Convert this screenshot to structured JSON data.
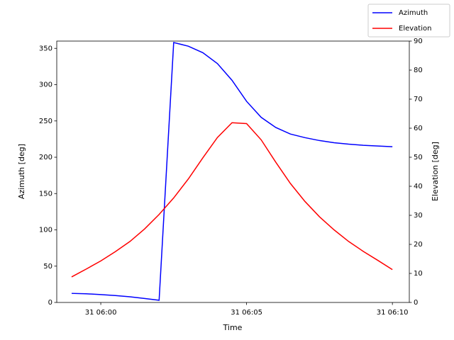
{
  "chart_data": {
    "type": "line",
    "x_label": "Time",
    "y_label": "Azimuth [deg]",
    "y2_label": "Elevation [deg]",
    "x": [
      -1,
      -0.5,
      0,
      0.5,
      1,
      1.5,
      2,
      2.5,
      3,
      3.5,
      4,
      4.5,
      5,
      5.5,
      6,
      6.5,
      7,
      7.5,
      8,
      8.5,
      9,
      9.5,
      10
    ],
    "series": [
      {
        "name": "Azimuth",
        "color": "#0000ff",
        "axis": "y",
        "values": [
          12.5,
          12,
          10.8,
          9.5,
          7.8,
          5.5,
          3,
          358,
          353,
          344,
          329,
          306,
          277,
          255,
          241,
          232,
          227,
          223,
          220,
          218,
          216.5,
          215.5,
          214.5
        ]
      },
      {
        "name": "Elevation",
        "color": "#ff0000",
        "axis": "y2",
        "values": [
          8.8,
          11.5,
          14.3,
          17.5,
          21,
          25.3,
          30.3,
          36,
          42.5,
          49.8,
          56.8,
          61.9,
          61.6,
          56,
          48.3,
          41,
          34.8,
          29.5,
          25,
          21,
          17.6,
          14.5,
          11.3
        ]
      }
    ],
    "xlim": [
      -1.51,
      10.58
    ],
    "xticks": [
      {
        "value": 0,
        "label": "31 06:00"
      },
      {
        "value": 5,
        "label": "31 06:05"
      },
      {
        "value": 10,
        "label": "31 06:10"
      }
    ],
    "ylim": [
      0,
      360
    ],
    "yticks": [
      0,
      50,
      100,
      150,
      200,
      250,
      300,
      350
    ],
    "y2lim": [
      0,
      90
    ],
    "y2ticks": [
      0,
      10,
      20,
      30,
      40,
      50,
      60,
      70,
      80,
      90
    ],
    "legend": "upper right"
  }
}
